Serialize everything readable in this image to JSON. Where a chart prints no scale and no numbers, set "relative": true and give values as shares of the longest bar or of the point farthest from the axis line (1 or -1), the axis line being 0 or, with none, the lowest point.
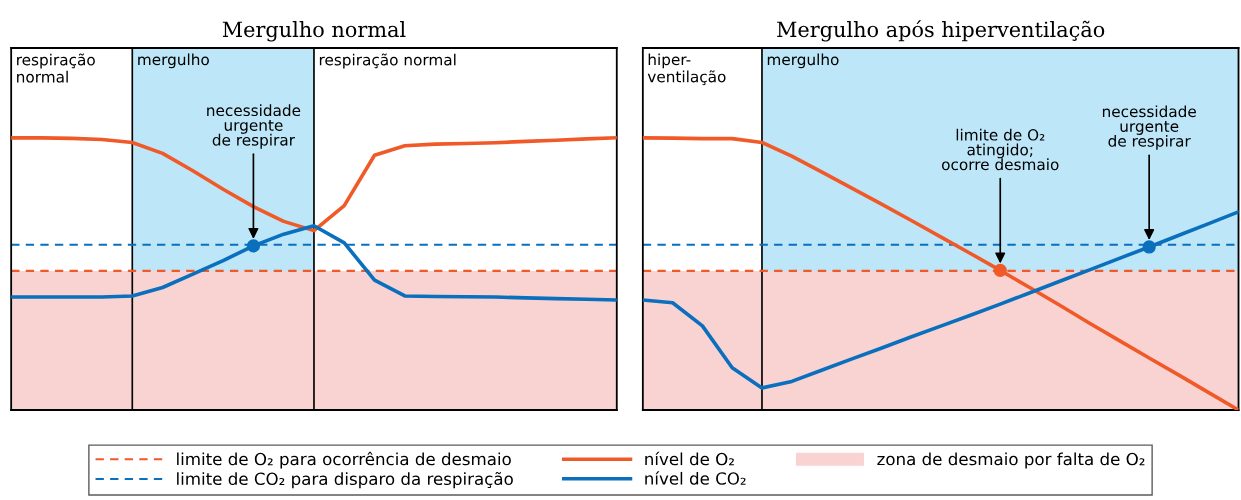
{
  "chart_data": [
    {
      "type": "line",
      "title": "Mergulho normal",
      "relative": true,
      "legend": "bottom",
      "categories": [
        null,
        null,
        null,
        null,
        null,
        null,
        null,
        null,
        null,
        null,
        null,
        null,
        null,
        null,
        null,
        null,
        null,
        null,
        null,
        null,
        null
      ],
      "series": [
        {
          "name": "nível de O₂",
          "color": "#f05a28",
          "values": [
            1.0,
            1.0,
            0.998,
            0.994,
            0.983,
            0.943,
            0.879,
            0.811,
            0.747,
            0.693,
            0.659,
            0.751,
            0.936,
            0.971,
            0.977,
            0.979,
            0.982,
            0.987,
            0.991,
            0.996,
            1.0
          ]
        },
        {
          "name": "nível de CO₂",
          "color": "#0a6fbd",
          "values": [
            0.415,
            0.415,
            0.415,
            0.415,
            0.419,
            0.45,
            0.499,
            0.549,
            0.603,
            0.646,
            0.677,
            0.614,
            0.477,
            0.419,
            0.417,
            0.416,
            0.415,
            0.412,
            0.409,
            0.407,
            0.404
          ]
        }
      ],
      "bands": [
        {
          "axis": "y",
          "from": 0,
          "to": 0.511,
          "label": "zona de desmaio por falta de O₂",
          "color": "#f9d3d2"
        }
      ],
      "ref_lines": [
        {
          "axis": "y",
          "value": 0.511,
          "label": "limite de O₂ para ocorrência de desmaio",
          "color": "#f05a28",
          "line_style": "dashed"
        },
        {
          "axis": "y",
          "value": 0.607,
          "label": "limite de CO₂ para disparo da respiração",
          "color": "#0a6fbd",
          "line_style": "dashed"
        }
      ],
      "annotations": [
        "respiração\nnormal",
        "mergulho",
        "respiração normal",
        {
          "text": "necessidade\nurgente\nde respirar",
          "y": 0.603
        }
      ]
    },
    {
      "type": "line",
      "title": "Mergulho após hiperventilação",
      "relative": true,
      "categories": [
        null,
        null,
        null,
        null,
        null,
        null,
        null,
        null,
        null,
        null,
        null,
        null,
        null,
        null,
        null,
        null,
        null,
        null,
        null,
        null,
        null
      ],
      "series": [
        {
          "color": "#f05a28",
          "values": [
            1.0,
            0.999,
            0.997,
            0.997,
            0.983,
            0.933,
            0.875,
            0.816,
            0.757,
            0.697,
            0.636,
            0.575,
            0.513,
            0.449,
            0.385,
            0.319,
            0.255,
            0.191,
            0.128,
            0.064,
            0.0
          ]
        },
        {
          "color": "#0a6fbd",
          "values": [
            0.404,
            0.394,
            0.309,
            0.155,
            0.081,
            0.105,
            0.146,
            0.187,
            0.227,
            0.268,
            0.308,
            0.348,
            0.389,
            0.431,
            0.473,
            0.515,
            0.557,
            0.599,
            0.642,
            0.685,
            0.728
          ]
        }
      ],
      "bands": [
        {
          "axis": "y",
          "from": 0,
          "to": 0.511,
          "color": "#f9d3d2"
        }
      ],
      "ref_lines": [
        {
          "axis": "y",
          "value": 0.607,
          "color": "#0a6fbd",
          "line_style": "dashed"
        },
        {
          "axis": "y",
          "value": 0.511,
          "color": "#f05a28",
          "line_style": "dashed"
        }
      ],
      "annotations": [
        "hiper-\nventilação",
        "mergulho",
        {
          "text": "limite de O₂\natingido;\nocorre desmaio",
          "y": 0.513
        },
        {
          "text": "necessidade\nurgente\nde respirar",
          "y": 0.599
        }
      ]
    }
  ]
}
